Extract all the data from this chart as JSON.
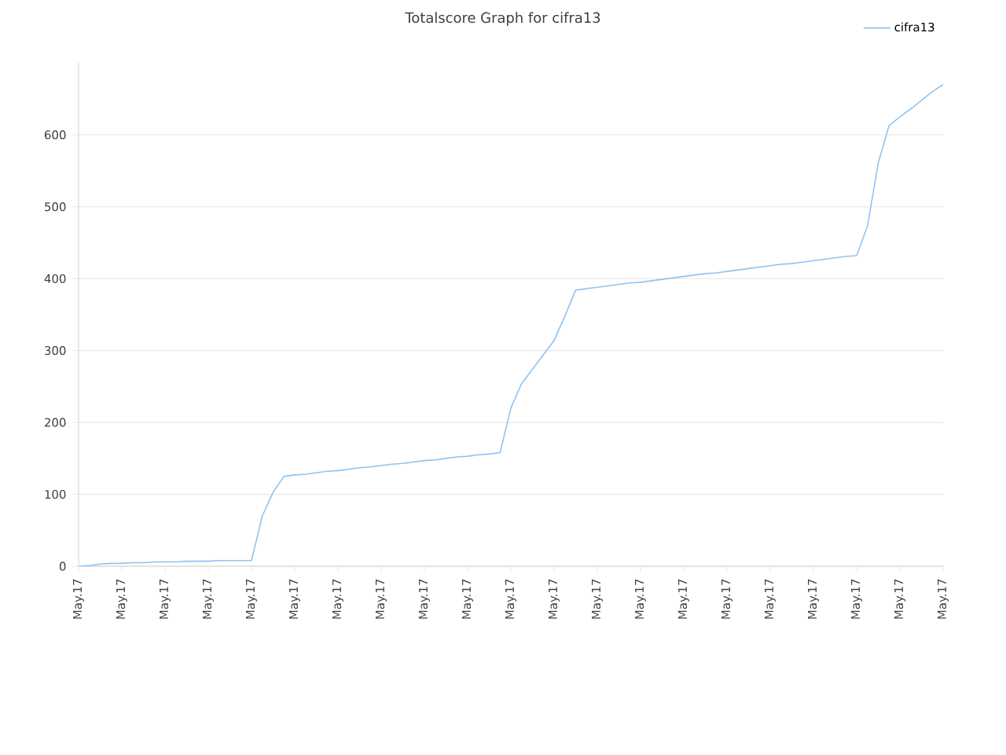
{
  "chart_data": {
    "type": "line",
    "title": "Totalscore Graph for cifra13",
    "categories": [
      "May.17",
      null,
      null,
      null,
      "May.17",
      null,
      null,
      null,
      "May.17",
      null,
      null,
      null,
      "May.17",
      null,
      null,
      null,
      "May.17",
      null,
      null,
      null,
      "May.17",
      null,
      null,
      null,
      "May.17",
      null,
      null,
      null,
      "May.17",
      null,
      null,
      null,
      "May.17",
      null,
      null,
      null,
      "May.17",
      null,
      null,
      null,
      "May.17",
      null,
      null,
      null,
      "May.17",
      null,
      null,
      null,
      "May.17",
      null,
      null,
      null,
      "May.17",
      null,
      null,
      null,
      "May.17",
      null,
      null,
      null,
      "May.17",
      null,
      null,
      null,
      "May.17",
      null,
      null,
      null,
      "May.17",
      null,
      null,
      null,
      "May.17",
      null,
      null,
      null,
      "May.17",
      null,
      null,
      null,
      "May.17"
    ],
    "series": [
      {
        "name": "cifra13",
        "color": "#8fc3f2",
        "values": [
          0,
          1,
          3,
          4,
          4,
          5,
          5,
          6,
          6,
          6,
          7,
          7,
          7,
          8,
          8,
          8,
          8,
          70,
          103,
          125,
          127,
          128,
          130,
          132,
          133,
          135,
          137,
          138,
          140,
          142,
          143,
          145,
          147,
          148,
          150,
          152,
          153,
          155,
          156,
          158,
          220,
          254,
          274,
          294,
          314,
          348,
          384,
          386,
          388,
          390,
          392,
          394,
          395,
          397,
          399,
          401,
          403,
          405,
          407,
          408,
          410,
          412,
          414,
          416,
          418,
          420,
          421,
          423,
          425,
          427,
          429,
          431,
          432,
          473,
          561,
          613,
          625,
          636,
          648,
          660,
          670
        ]
      }
    ],
    "ylim": [
      0,
      700
    ],
    "yticks": [
      0,
      100,
      200,
      300,
      400,
      500,
      600
    ],
    "grid": "y",
    "legend": "top right",
    "marker": "none",
    "line_style": "solid"
  }
}
